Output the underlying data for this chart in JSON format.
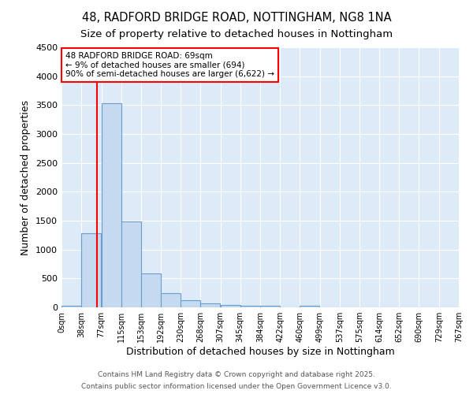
{
  "title_line1": "48, RADFORD BRIDGE ROAD, NOTTINGHAM, NG8 1NA",
  "title_line2": "Size of property relative to detached houses in Nottingham",
  "xlabel": "Distribution of detached houses by size in Nottingham",
  "ylabel": "Number of detached properties",
  "bin_edges": [
    0,
    38,
    77,
    115,
    153,
    192,
    230,
    268,
    307,
    345,
    384,
    422,
    460,
    499,
    537,
    575,
    614,
    652,
    690,
    729,
    767
  ],
  "bar_heights": [
    30,
    1280,
    3530,
    1490,
    590,
    245,
    120,
    75,
    40,
    25,
    25,
    0,
    30,
    0,
    0,
    0,
    0,
    0,
    0,
    0
  ],
  "bar_color": "#c5d9f0",
  "bar_edge_color": "#6a9fcb",
  "bar_edge_width": 0.8,
  "property_x": 69,
  "property_line_color": "red",
  "annotation_text": "48 RADFORD BRIDGE ROAD: 69sqm\n← 9% of detached houses are smaller (694)\n90% of semi-detached houses are larger (6,622) →",
  "annotation_box_color": "white",
  "annotation_box_edge_color": "red",
  "ylim": [
    0,
    4500
  ],
  "xlim": [
    0,
    767
  ],
  "tick_labels": [
    "0sqm",
    "38sqm",
    "77sqm",
    "115sqm",
    "153sqm",
    "192sqm",
    "230sqm",
    "268sqm",
    "307sqm",
    "345sqm",
    "384sqm",
    "422sqm",
    "460sqm",
    "499sqm",
    "537sqm",
    "575sqm",
    "614sqm",
    "652sqm",
    "690sqm",
    "729sqm",
    "767sqm"
  ],
  "background_color": "#ddeaf7",
  "grid_color": "white",
  "title_fontsize": 10.5,
  "subtitle_fontsize": 9.5,
  "axis_label_fontsize": 9,
  "tick_fontsize": 7,
  "annotation_fontsize": 7.5,
  "footnote1": "Contains HM Land Registry data © Crown copyright and database right 2025.",
  "footnote2": "Contains public sector information licensed under the Open Government Licence v3.0.",
  "footnote_fontsize": 6.5
}
